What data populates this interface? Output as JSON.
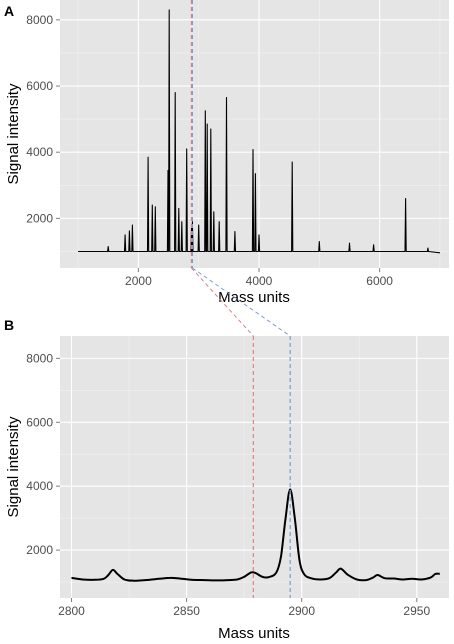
{
  "panels": [
    {
      "tag": "A",
      "xlabel": "Mass units",
      "ylabel": "Signal intensity",
      "xlim": [
        700,
        7150
      ],
      "ylim": [
        500,
        8600
      ],
      "xticks": [
        2000,
        4000,
        6000
      ],
      "yticks": [
        2000,
        4000,
        6000,
        8000
      ],
      "markers": [
        {
          "x": 2879,
          "color": "#d9838f"
        },
        {
          "x": 2895,
          "color": "#7a9fcd"
        }
      ]
    },
    {
      "tag": "B",
      "xlabel": "Mass units",
      "ylabel": "Signal intensity",
      "xlim": [
        2795,
        2964
      ],
      "ylim": [
        500,
        8700
      ],
      "xticks": [
        2800,
        2850,
        2900,
        2950
      ],
      "yticks": [
        2000,
        4000,
        6000,
        8000
      ],
      "markers": [
        {
          "x": 2879,
          "color": "#d9838f"
        },
        {
          "x": 2895,
          "color": "#7a9fcd"
        }
      ]
    }
  ],
  "chart_data": [
    {
      "type": "line",
      "panel": "A",
      "xlabel": "Mass units",
      "ylabel": "Signal intensity",
      "xlim": [
        700,
        7150
      ],
      "ylim": [
        500,
        8600
      ],
      "baseline": 1000,
      "x_range": [
        1000,
        7000
      ],
      "peaks": [
        [
          1500,
          1150
        ],
        [
          1780,
          1500
        ],
        [
          1850,
          1620
        ],
        [
          1900,
          1800
        ],
        [
          2160,
          3850
        ],
        [
          2230,
          2400
        ],
        [
          2280,
          2350
        ],
        [
          2490,
          3450
        ],
        [
          2510,
          8300
        ],
        [
          2610,
          5800
        ],
        [
          2670,
          2300
        ],
        [
          2720,
          1900
        ],
        [
          2800,
          4100
        ],
        [
          2880,
          1700
        ],
        [
          2895,
          1900
        ],
        [
          3000,
          1800
        ],
        [
          3110,
          5250
        ],
        [
          3140,
          4850
        ],
        [
          3200,
          4700
        ],
        [
          3250,
          2200
        ],
        [
          3340,
          1900
        ],
        [
          3460,
          5650
        ],
        [
          3600,
          1600
        ],
        [
          3900,
          4080
        ],
        [
          3940,
          3350
        ],
        [
          4000,
          1500
        ],
        [
          4550,
          3700
        ],
        [
          5000,
          1300
        ],
        [
          5500,
          1250
        ],
        [
          5900,
          1200
        ],
        [
          6430,
          2600
        ],
        [
          6800,
          1100
        ]
      ]
    },
    {
      "type": "line",
      "panel": "B",
      "xlabel": "Mass units",
      "ylabel": "Signal intensity",
      "xlim": [
        2795,
        2964
      ],
      "ylim": [
        500,
        8700
      ],
      "points": [
        [
          2800,
          1130
        ],
        [
          2805,
          1080
        ],
        [
          2810,
          1070
        ],
        [
          2814,
          1100
        ],
        [
          2816,
          1220
        ],
        [
          2818,
          1380
        ],
        [
          2820,
          1250
        ],
        [
          2823,
          1080
        ],
        [
          2827,
          1040
        ],
        [
          2832,
          1060
        ],
        [
          2838,
          1100
        ],
        [
          2843,
          1130
        ],
        [
          2847,
          1110
        ],
        [
          2852,
          1070
        ],
        [
          2858,
          1060
        ],
        [
          2863,
          1050
        ],
        [
          2868,
          1060
        ],
        [
          2872,
          1080
        ],
        [
          2875,
          1160
        ],
        [
          2878,
          1300
        ],
        [
          2880,
          1280
        ],
        [
          2883,
          1160
        ],
        [
          2886,
          1160
        ],
        [
          2889,
          1300
        ],
        [
          2891,
          1800
        ],
        [
          2893,
          3000
        ],
        [
          2895,
          3900
        ],
        [
          2897,
          3000
        ],
        [
          2899,
          1700
        ],
        [
          2901,
          1250
        ],
        [
          2904,
          1120
        ],
        [
          2908,
          1080
        ],
        [
          2912,
          1120
        ],
        [
          2915,
          1300
        ],
        [
          2917,
          1420
        ],
        [
          2920,
          1230
        ],
        [
          2924,
          1080
        ],
        [
          2928,
          1060
        ],
        [
          2931,
          1140
        ],
        [
          2933,
          1220
        ],
        [
          2936,
          1120
        ],
        [
          2940,
          1110
        ],
        [
          2944,
          1080
        ],
        [
          2948,
          1100
        ],
        [
          2952,
          1080
        ],
        [
          2956,
          1140
        ],
        [
          2958,
          1250
        ],
        [
          2960,
          1260
        ]
      ]
    }
  ]
}
